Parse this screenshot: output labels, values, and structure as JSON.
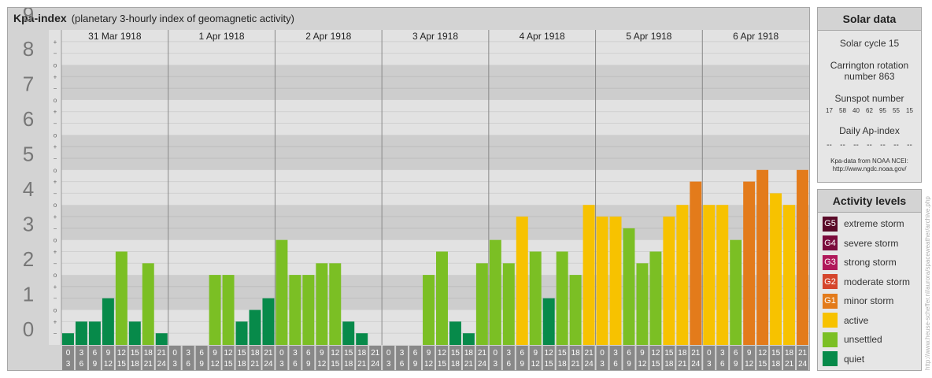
{
  "title": {
    "main": "Kpa-index",
    "subtitle": "(planetary 3-hourly index of geomagnetic activity)"
  },
  "chart_data": {
    "type": "bar",
    "ylim": [
      0,
      9
    ],
    "y_ticks": [
      "0",
      "1",
      "2",
      "3",
      "4",
      "5",
      "6",
      "7",
      "8",
      "9"
    ],
    "sub_ticks": [
      "−",
      "+",
      "o"
    ],
    "days": [
      "31 Mar 1918",
      "1 Apr 1918",
      "2 Apr 1918",
      "3 Apr 1918",
      "4 Apr 1918",
      "5 Apr 1918",
      "6 Apr 1918"
    ],
    "interval_start": [
      "0",
      "3",
      "6",
      "9",
      "12",
      "15",
      "18",
      "21"
    ],
    "interval_end": [
      "3",
      "6",
      "9",
      "12",
      "15",
      "18",
      "21",
      "24"
    ],
    "values": [
      [
        0.333,
        0.667,
        0.667,
        1.333,
        2.667,
        0.667,
        2.333,
        0.333
      ],
      [
        0,
        0,
        0,
        2,
        2,
        0.667,
        1,
        1.333
      ],
      [
        3,
        2,
        2,
        2.333,
        2.333,
        0.667,
        0.333,
        0
      ],
      [
        0,
        0,
        0,
        2,
        2.667,
        0.667,
        0.333,
        2.333
      ],
      [
        3,
        2.333,
        3.667,
        2.667,
        1.333,
        2.667,
        2,
        4
      ],
      [
        3.667,
        3.667,
        3.333,
        2.333,
        2.667,
        3.667,
        4,
        4.667
      ],
      [
        4,
        4,
        3,
        4.667,
        5,
        4.333,
        4,
        5
      ]
    ]
  },
  "solar": {
    "title": "Solar data",
    "cycle": "Solar cycle 15",
    "carrington_1": "Carrington rotation",
    "carrington_2": "number 863",
    "sunspot_title": "Sunspot number",
    "sunspots": [
      "17",
      "58",
      "40",
      "62",
      "95",
      "55",
      "15"
    ],
    "ap_title": "Daily Ap-index",
    "ap_values": [
      "--",
      "--",
      "--",
      "--",
      "--",
      "--",
      "--"
    ],
    "credit_1": "Kpa-data from NOAA NCEI:",
    "credit_2": "http://www.ngdc.noaa.gov/"
  },
  "levels": {
    "title": "Activity levels",
    "items": [
      {
        "code": "G5",
        "label": "extreme storm",
        "color": "#5a0a28"
      },
      {
        "code": "G4",
        "label": "severe storm",
        "color": "#7b0b3c"
      },
      {
        "code": "G3",
        "label": "strong storm",
        "color": "#b0185a"
      },
      {
        "code": "G2",
        "label": "moderate storm",
        "color": "#d5452c"
      },
      {
        "code": "G1",
        "label": "minor storm",
        "color": "#e37b1b"
      },
      {
        "code": "",
        "label": "active",
        "color": "#f7c200"
      },
      {
        "code": "",
        "label": "unsettled",
        "color": "#7bbf24"
      },
      {
        "code": "",
        "label": "quiet",
        "color": "#078a4a"
      }
    ]
  },
  "colors": {
    "quiet": "#078a4a",
    "unsettled": "#7bbf24",
    "active": "#f7c200",
    "minor": "#e37b1b"
  },
  "watermark": "http://www.heuse-scheffer.nl/aurora/spaceweather/archive.php"
}
